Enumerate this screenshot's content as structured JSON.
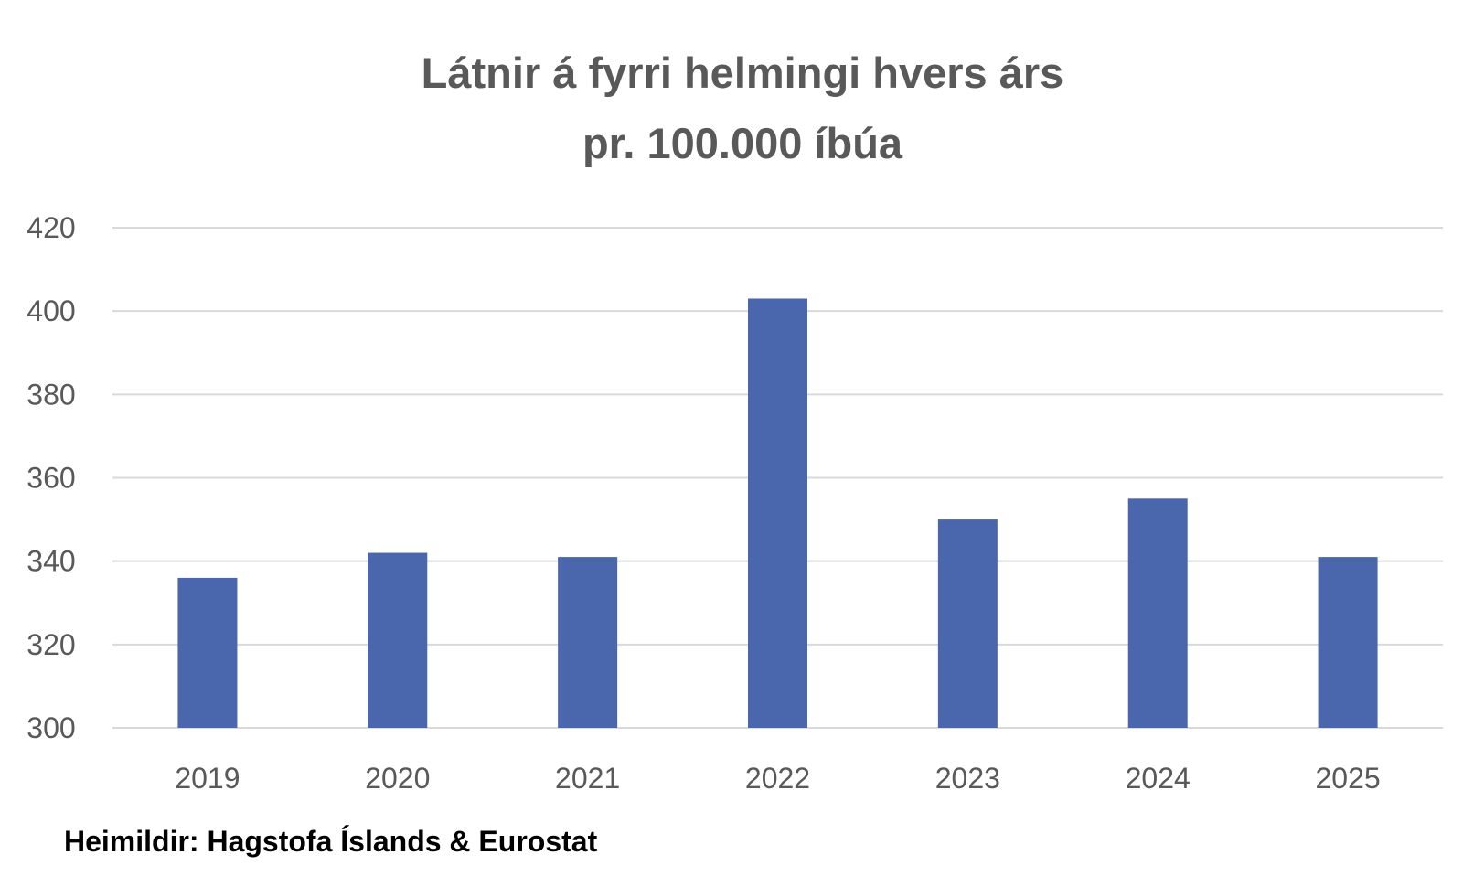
{
  "chart_data": {
    "type": "bar",
    "title_lines": [
      "Látnir á fyrri helmingi hvers árs",
      "pr. 100.000 íbúa"
    ],
    "categories": [
      "2019",
      "2020",
      "2021",
      "2022",
      "2023",
      "2024",
      "2025"
    ],
    "values": [
      336,
      342,
      341,
      403,
      350,
      355,
      341
    ],
    "ylim": [
      300,
      420
    ],
    "yticks": [
      300,
      320,
      340,
      360,
      380,
      400,
      420
    ],
    "xlabel": "",
    "ylabel": "",
    "grid": true,
    "legend": "none",
    "bar_color": "#4a66ac",
    "gridline_color": "#d9d9d9"
  },
  "source": "Heimildir: Hagstofa Íslands & Eurostat"
}
